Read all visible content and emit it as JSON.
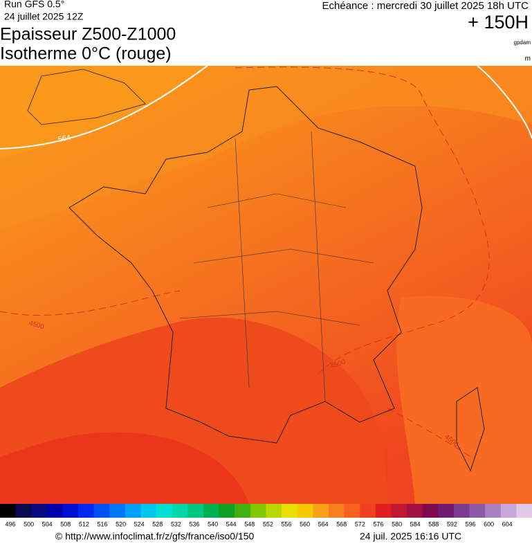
{
  "header": {
    "run": "Run GFS 0.5°",
    "run_date": "24 juillet 2025 12Z",
    "echeance": "Echéance : mercredi 30 juillet 2025 18h UTC",
    "lead": "+ 150H",
    "title_line1": "Epaisseur Z500-Z1000",
    "title_line2": "Isotherme 0°C (rouge)",
    "unit_thickness": "gpdam",
    "unit_iso": "m"
  },
  "map": {
    "contour_labels": [
      564,
      4500,
      4500,
      4500
    ]
  },
  "colorbar": {
    "colors": [
      "#000000",
      "#0a0a50",
      "#0a0a80",
      "#0000a8",
      "#0010d0",
      "#0028f0",
      "#0050f8",
      "#0078f8",
      "#00a0f8",
      "#00c8f0",
      "#00e0d0",
      "#00d8a8",
      "#00c880",
      "#00b050",
      "#10a020",
      "#40b010",
      "#80c800",
      "#b8d800",
      "#e8e000",
      "#f8c800",
      "#f8a018",
      "#f88020",
      "#f86020",
      "#f04020",
      "#e02020",
      "#c01830",
      "#a01040",
      "#800a50",
      "#701a70"
    ],
    "labels": [
      496,
      500,
      504,
      508,
      512,
      516,
      520,
      524,
      528,
      532,
      536,
      540,
      544,
      548,
      552,
      556,
      560,
      564,
      568,
      572,
      576,
      580,
      584,
      588,
      592,
      596,
      600,
      604
    ],
    "extra_colors": [
      "#7a3a90",
      "#8e5aa8",
      "#a880c0",
      "#c8a8d8",
      "#e0c8e8"
    ]
  },
  "footer": {
    "url": "© http://www.infoclimat.fr/z/gfs/france/iso0/150",
    "stamp": "24 juil. 2025 16:16 UTC"
  }
}
